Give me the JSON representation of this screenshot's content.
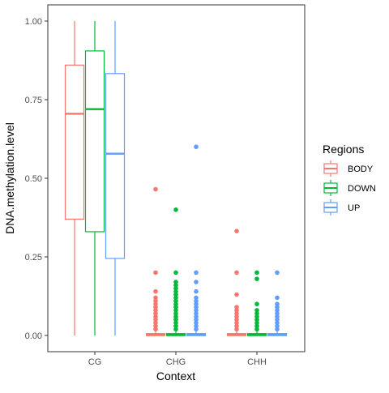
{
  "chart_data": {
    "type": "boxplot",
    "title": "",
    "xlabel": "Context",
    "ylabel": "DNA.methylation.level",
    "ylim": [
      0,
      1
    ],
    "yticks": [
      0.0,
      0.25,
      0.5,
      0.75,
      1.0
    ],
    "ytick_labels": [
      "0.00",
      "0.25",
      "0.50",
      "0.75",
      "1.00"
    ],
    "categories": [
      "CG",
      "CHG",
      "CHH"
    ],
    "legend": {
      "title": "Regions",
      "position": "right"
    },
    "grid": false,
    "series": [
      {
        "name": "BODY",
        "color": "#F8766D",
        "boxes": [
          {
            "category": "CG",
            "min": 0.0,
            "q1": 0.37,
            "median": 0.705,
            "q3": 0.86,
            "max": 1.0,
            "outliers": []
          },
          {
            "category": "CHG",
            "min": 0.0,
            "q1": 0.0,
            "median": 0.003,
            "q3": 0.006,
            "max": 0.015,
            "outliers": [
              0.02,
              0.03,
              0.04,
              0.05,
              0.06,
              0.07,
              0.08,
              0.09,
              0.1,
              0.11,
              0.12,
              0.14,
              0.2,
              0.465
            ]
          },
          {
            "category": "CHH",
            "min": 0.0,
            "q1": 0.0,
            "median": 0.003,
            "q3": 0.006,
            "max": 0.014,
            "outliers": [
              0.02,
              0.03,
              0.04,
              0.05,
              0.06,
              0.07,
              0.08,
              0.09,
              0.13,
              0.2,
              0.332
            ]
          }
        ]
      },
      {
        "name": "DOWN",
        "color": "#00BA38",
        "boxes": [
          {
            "category": "CG",
            "min": 0.0,
            "q1": 0.33,
            "median": 0.72,
            "q3": 0.905,
            "max": 1.0,
            "outliers": []
          },
          {
            "category": "CHG",
            "min": 0.0,
            "q1": 0.0,
            "median": 0.003,
            "q3": 0.006,
            "max": 0.015,
            "outliers": [
              0.02,
              0.03,
              0.04,
              0.05,
              0.06,
              0.07,
              0.08,
              0.09,
              0.1,
              0.11,
              0.12,
              0.13,
              0.14,
              0.15,
              0.16,
              0.17,
              0.2,
              0.4
            ]
          },
          {
            "category": "CHH",
            "min": 0.0,
            "q1": 0.0,
            "median": 0.003,
            "q3": 0.006,
            "max": 0.013,
            "outliers": [
              0.02,
              0.03,
              0.04,
              0.05,
              0.06,
              0.07,
              0.08,
              0.1,
              0.18,
              0.2
            ]
          }
        ]
      },
      {
        "name": "UP",
        "color": "#619CFF",
        "boxes": [
          {
            "category": "CG",
            "min": 0.0,
            "q1": 0.245,
            "median": 0.578,
            "q3": 0.833,
            "max": 1.0,
            "outliers": []
          },
          {
            "category": "CHG",
            "min": 0.0,
            "q1": 0.0,
            "median": 0.003,
            "q3": 0.006,
            "max": 0.015,
            "outliers": [
              0.02,
              0.03,
              0.04,
              0.05,
              0.06,
              0.07,
              0.08,
              0.09,
              0.1,
              0.11,
              0.12,
              0.14,
              0.17,
              0.2,
              0.6
            ]
          },
          {
            "category": "CHH",
            "min": 0.0,
            "q1": 0.0,
            "median": 0.003,
            "q3": 0.006,
            "max": 0.013,
            "outliers": [
              0.02,
              0.03,
              0.04,
              0.05,
              0.06,
              0.07,
              0.08,
              0.09,
              0.1,
              0.12,
              0.2
            ]
          }
        ]
      }
    ]
  }
}
